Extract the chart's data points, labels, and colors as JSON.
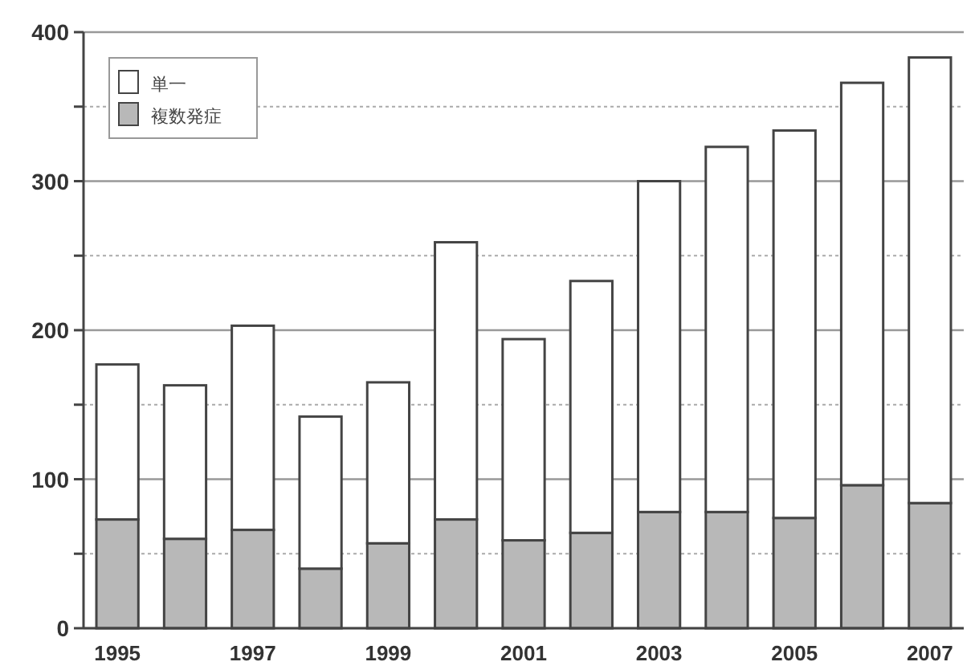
{
  "chart_data": {
    "type": "bar",
    "stacked": true,
    "legend": "top left",
    "grid": "y",
    "categories": [
      "1995",
      null,
      "1997",
      null,
      "1999",
      null,
      "2001",
      null,
      "2003",
      null,
      "2005",
      null,
      "2007"
    ],
    "series": [
      {
        "name": "複数発症",
        "color": "#b8b8b8",
        "values": [
          73,
          60,
          66,
          40,
          57,
          73,
          59,
          64,
          78,
          78,
          74,
          96,
          84
        ]
      },
      {
        "name": "単一",
        "color": "#ffffff",
        "values": [
          104,
          103,
          137,
          102,
          108,
          186,
          135,
          169,
          222,
          245,
          260,
          270,
          299
        ]
      }
    ],
    "ylim": [
      0,
      400
    ],
    "yticks": [
      0,
      {
        "value": 50,
        "label": null
      },
      100,
      {
        "value": 150,
        "label": null
      },
      200,
      {
        "value": 250,
        "label": null
      },
      300,
      {
        "value": 350,
        "label": null
      },
      400
    ]
  }
}
